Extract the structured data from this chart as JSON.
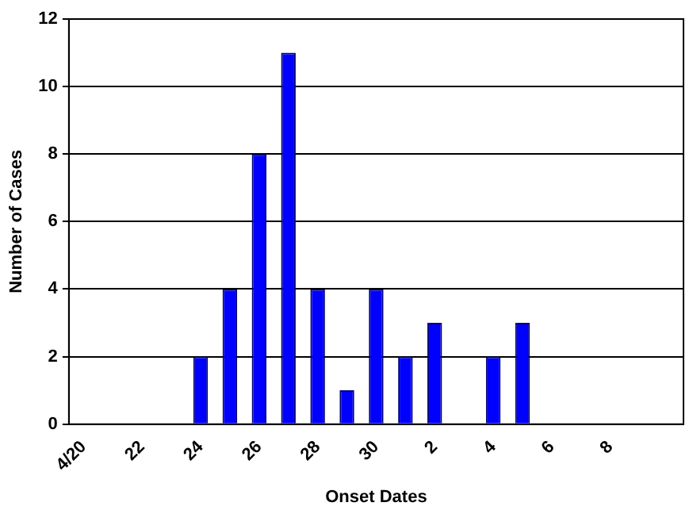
{
  "chart_data": {
    "type": "bar",
    "xlabel": "Onset Dates",
    "ylabel": "Number of Cases",
    "categories": [
      "4/20",
      null,
      "22",
      null,
      "24",
      null,
      "26",
      null,
      "28",
      null,
      "30",
      null,
      "2",
      null,
      "4",
      null,
      "6",
      null,
      "8",
      null,
      null
    ],
    "values": [
      0,
      0,
      0,
      0,
      2,
      4,
      8,
      11,
      4,
      1,
      4,
      2,
      3,
      0,
      2,
      3,
      0,
      0,
      0,
      0,
      0
    ],
    "color": "#0000ff",
    "ylim": [
      0,
      12
    ],
    "yticks": [
      0,
      2,
      4,
      6,
      8,
      10,
      12
    ],
    "grid": "y",
    "legend": false
  }
}
